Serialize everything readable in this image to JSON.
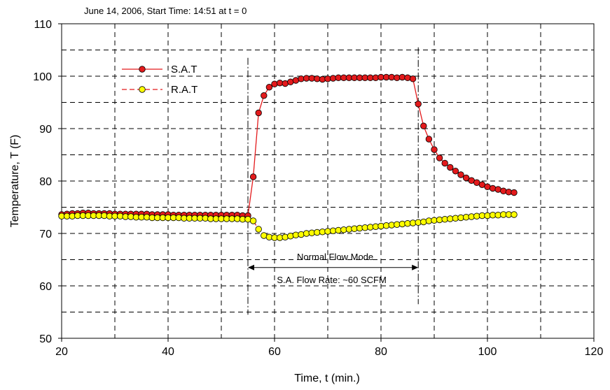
{
  "chart_data": {
    "type": "line",
    "title": "June 14, 2006,  Start Time: 14:51 at t = 0",
    "xlabel": "Time, t (min.)",
    "ylabel": "Temperature, T (F)",
    "xlim": [
      20,
      120
    ],
    "ylim": [
      50,
      110
    ],
    "xticks": [
      20,
      40,
      60,
      80,
      100,
      120
    ],
    "yticks": [
      50,
      60,
      70,
      80,
      90,
      100,
      110
    ],
    "xtick_labels": [
      "20",
      "40",
      "60",
      "80",
      "100",
      "120"
    ],
    "ytick_labels": [
      "50",
      "60",
      "70",
      "80",
      "90",
      "100",
      "110"
    ],
    "grid": true,
    "legend_position": "top-left",
    "series": [
      {
        "name": "S.A.T",
        "color": "#e31a1c",
        "marker_fill": "#e31a1c",
        "line_style": "solid",
        "x": [
          20,
          21,
          22,
          23,
          24,
          25,
          26,
          27,
          28,
          29,
          30,
          31,
          32,
          33,
          34,
          35,
          36,
          37,
          38,
          39,
          40,
          41,
          42,
          43,
          44,
          45,
          46,
          47,
          48,
          49,
          50,
          51,
          52,
          53,
          54,
          55,
          56,
          57,
          58,
          59,
          60,
          61,
          62,
          63,
          64,
          65,
          66,
          67,
          68,
          69,
          70,
          71,
          72,
          73,
          74,
          75,
          76,
          77,
          78,
          79,
          80,
          81,
          82,
          83,
          84,
          85,
          86,
          87,
          88,
          89,
          90,
          91,
          92,
          93,
          94,
          95,
          96,
          97,
          98,
          99,
          100,
          101,
          102,
          103,
          104,
          105
        ],
        "values": [
          73.6,
          73.7,
          73.8,
          73.8,
          73.9,
          73.9,
          73.8,
          73.8,
          73.8,
          73.8,
          73.7,
          73.7,
          73.7,
          73.7,
          73.7,
          73.7,
          73.7,
          73.6,
          73.6,
          73.6,
          73.6,
          73.5,
          73.5,
          73.5,
          73.5,
          73.5,
          73.5,
          73.5,
          73.5,
          73.5,
          73.5,
          73.5,
          73.5,
          73.5,
          73.4,
          73.4,
          80.8,
          93.0,
          96.3,
          97.9,
          98.5,
          98.7,
          98.6,
          98.9,
          99.2,
          99.5,
          99.6,
          99.6,
          99.5,
          99.4,
          99.5,
          99.6,
          99.7,
          99.7,
          99.7,
          99.7,
          99.7,
          99.7,
          99.7,
          99.7,
          99.8,
          99.8,
          99.8,
          99.7,
          99.8,
          99.7,
          99.5,
          94.7,
          90.5,
          88.0,
          86.0,
          84.4,
          83.4,
          82.6,
          81.9,
          81.2,
          80.6,
          80.1,
          79.7,
          79.3,
          78.9,
          78.6,
          78.4,
          78.1,
          77.9,
          77.8
        ]
      },
      {
        "name": "R.A.T",
        "color": "#e31a1c",
        "marker_fill": "#ffff00",
        "line_style": "dashed",
        "x": [
          20,
          21,
          22,
          23,
          24,
          25,
          26,
          27,
          28,
          29,
          30,
          31,
          32,
          33,
          34,
          35,
          36,
          37,
          38,
          39,
          40,
          41,
          42,
          43,
          44,
          45,
          46,
          47,
          48,
          49,
          50,
          51,
          52,
          53,
          54,
          55,
          56,
          57,
          58,
          59,
          60,
          61,
          62,
          63,
          64,
          65,
          66,
          67,
          68,
          69,
          70,
          71,
          72,
          73,
          74,
          75,
          76,
          77,
          78,
          79,
          80,
          81,
          82,
          83,
          84,
          85,
          86,
          87,
          88,
          89,
          90,
          91,
          92,
          93,
          94,
          95,
          96,
          97,
          98,
          99,
          100,
          101,
          102,
          103,
          104,
          105
        ],
        "values": [
          73.3,
          73.3,
          73.3,
          73.4,
          73.4,
          73.4,
          73.4,
          73.4,
          73.4,
          73.3,
          73.3,
          73.3,
          73.2,
          73.2,
          73.1,
          73.1,
          73.1,
          73.0,
          73.0,
          73.0,
          73.0,
          73.0,
          73.0,
          72.9,
          72.9,
          72.9,
          72.9,
          72.9,
          72.8,
          72.8,
          72.8,
          72.8,
          72.8,
          72.8,
          72.7,
          72.7,
          72.4,
          70.8,
          69.6,
          69.3,
          69.2,
          69.2,
          69.3,
          69.5,
          69.7,
          69.8,
          70.0,
          70.1,
          70.2,
          70.3,
          70.4,
          70.5,
          70.6,
          70.7,
          70.8,
          70.9,
          71.0,
          71.1,
          71.2,
          71.3,
          71.4,
          71.5,
          71.6,
          71.7,
          71.8,
          71.9,
          72.0,
          72.1,
          72.2,
          72.4,
          72.5,
          72.6,
          72.7,
          72.8,
          72.9,
          73.0,
          73.1,
          73.2,
          73.3,
          73.4,
          73.4,
          73.5,
          73.5,
          73.6,
          73.6,
          73.6
        ]
      }
    ],
    "annotations": {
      "mode_label": "Normal Flow Mode",
      "flow_label": "S.A. Flow Rate: ~60 SCFM",
      "arrow_x": [
        55,
        87
      ],
      "arrow_y": 63.5,
      "marker_lines": [
        {
          "x": 55,
          "y": [
            54.5,
            103.5
          ]
        },
        {
          "x": 87,
          "y": [
            56.5,
            105.5
          ]
        }
      ]
    }
  }
}
